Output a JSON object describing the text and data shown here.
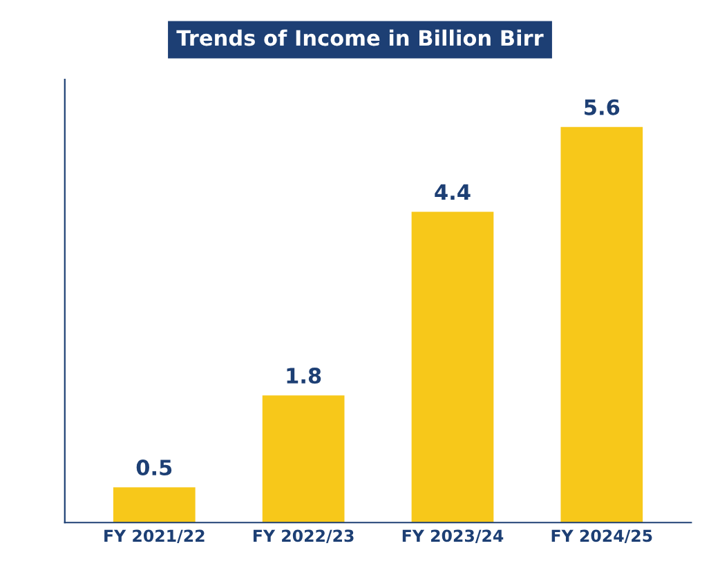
{
  "chart_data": {
    "type": "bar",
    "title": "Trends of Income in Billion Birr",
    "categories": [
      "FY 2021/22",
      "FY 2022/23",
      "FY 2023/24",
      "FY 2024/25"
    ],
    "values": [
      0.5,
      1.8,
      4.4,
      5.6
    ],
    "color": "#f7c81a",
    "data_labels": true,
    "grid": false,
    "legend": false
  }
}
